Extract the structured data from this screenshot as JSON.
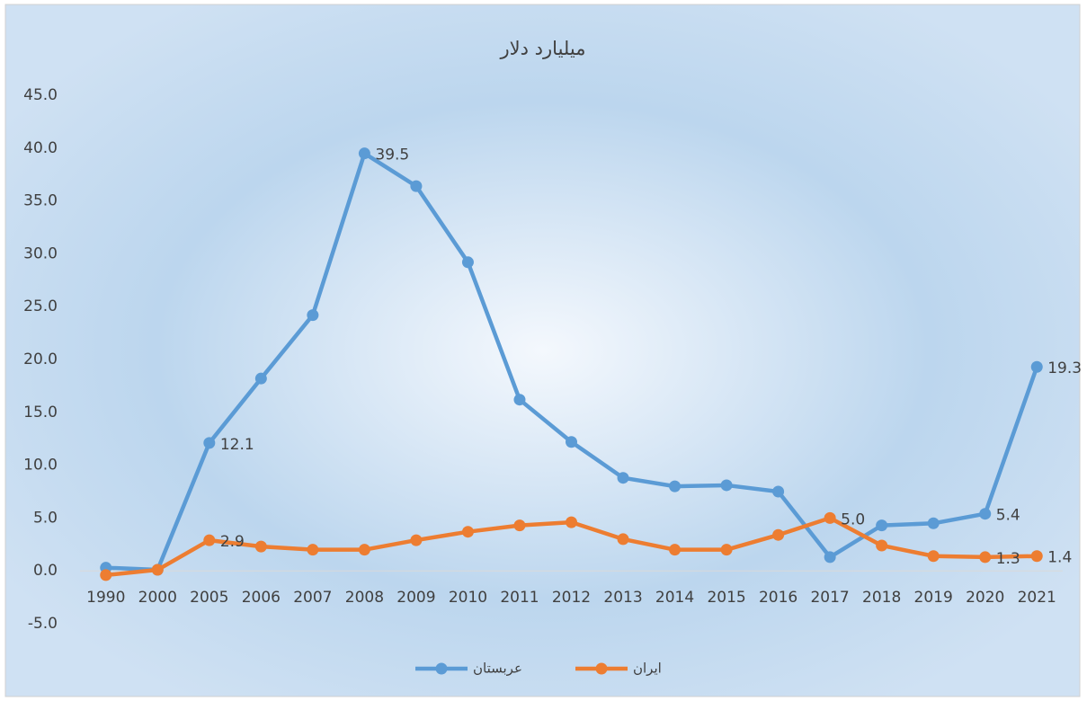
{
  "chart_data": {
    "type": "line",
    "title": "میلیارد دلار",
    "categories": [
      "1990",
      "2000",
      "2005",
      "2006",
      "2007",
      "2008",
      "2009",
      "2010",
      "2011",
      "2012",
      "2013",
      "2014",
      "2015",
      "2016",
      "2017",
      "2018",
      "2019",
      "2020",
      "2021"
    ],
    "series": [
      {
        "name": "عربستان",
        "color": "#5b9bd5",
        "values": [
          0.3,
          0.1,
          12.1,
          18.2,
          24.2,
          39.5,
          36.4,
          29.2,
          16.2,
          12.2,
          8.8,
          8.0,
          8.1,
          7.5,
          1.3,
          4.3,
          4.5,
          5.4,
          19.3
        ],
        "value_labels": [
          null,
          null,
          "12.1",
          null,
          null,
          "39.5",
          null,
          null,
          null,
          null,
          null,
          null,
          null,
          null,
          null,
          null,
          null,
          "5.4",
          "19.3"
        ]
      },
      {
        "name": "ایران",
        "color": "#ed7d31",
        "values": [
          -0.4,
          0.1,
          2.9,
          2.3,
          2.0,
          2.0,
          2.9,
          3.7,
          4.3,
          4.6,
          3.0,
          2.0,
          2.0,
          3.4,
          5.0,
          2.4,
          1.4,
          1.3,
          1.4
        ],
        "value_labels": [
          null,
          null,
          "2.9",
          null,
          null,
          null,
          null,
          null,
          null,
          null,
          null,
          null,
          null,
          null,
          "5.0",
          null,
          null,
          "1.3",
          "1.4"
        ]
      }
    ],
    "ylim": [
      -5,
      45
    ],
    "yticks": [
      {
        "value": -5,
        "label": "-5.0"
      },
      {
        "value": 0,
        "label": "0.0"
      },
      {
        "value": 5,
        "label": "5.0"
      },
      {
        "value": 10,
        "label": "10.0"
      },
      {
        "value": 15,
        "label": "15.0"
      },
      {
        "value": 20,
        "label": "20.0"
      },
      {
        "value": 25,
        "label": "25.0"
      },
      {
        "value": 30,
        "label": "30.0"
      },
      {
        "value": 35,
        "label": "35.0"
      },
      {
        "value": 40,
        "label": "40.0"
      },
      {
        "value": 45,
        "label": "45.0"
      }
    ],
    "legend": "bottom"
  }
}
